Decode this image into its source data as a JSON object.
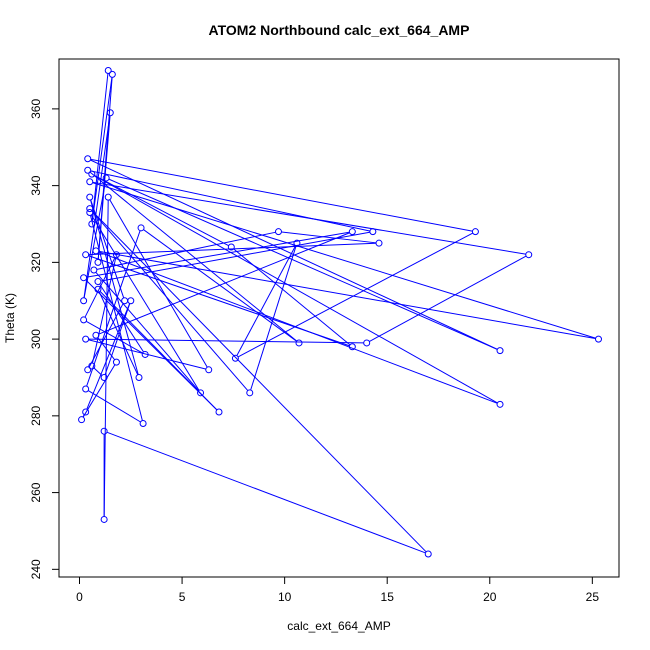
{
  "chart_data": {
    "type": "line",
    "title": "ATOM2 Northbound calc_ext_664_AMP",
    "xlabel": "calc_ext_664_AMP",
    "ylabel": "Theta (K)",
    "xlim": [
      -1.0,
      26.3
    ],
    "ylim": [
      238.0,
      373.0
    ],
    "x_ticks": [
      0,
      5,
      10,
      15,
      20,
      25
    ],
    "y_ticks": [
      240,
      260,
      280,
      300,
      320,
      340,
      360
    ],
    "grid": false,
    "legend": "none",
    "marker": "open-circle",
    "color": "#0000ff",
    "series": [
      {
        "points": [
          [
            1.4,
            370.0
          ],
          [
            0.6,
            330.0
          ],
          [
            1.6,
            369.0
          ],
          [
            0.9,
            320.0
          ],
          [
            1.5,
            359.0
          ],
          [
            0.2,
            310.0
          ],
          [
            1.3,
            342.0
          ],
          [
            20.5,
            297.0
          ],
          [
            0.4,
            347.0
          ],
          [
            19.3,
            328.0
          ],
          [
            7.6,
            295.0
          ],
          [
            10.6,
            325.0
          ],
          [
            8.3,
            286.0
          ],
          [
            0.5,
            334.0
          ],
          [
            17.0,
            244.0
          ],
          [
            1.2,
            276.0
          ],
          [
            1.2,
            253.0
          ],
          [
            1.4,
            337.0
          ],
          [
            6.3,
            292.0
          ],
          [
            0.3,
            300.0
          ],
          [
            14.0,
            299.0
          ],
          [
            21.9,
            322.0
          ],
          [
            0.5,
            341.0
          ],
          [
            25.3,
            300.0
          ],
          [
            0.8,
            323.0
          ],
          [
            20.5,
            283.0
          ],
          [
            0.6,
            343.0
          ],
          [
            7.4,
            324.0
          ],
          [
            13.3,
            298.0
          ],
          [
            0.3,
            322.0
          ],
          [
            14.6,
            325.0
          ],
          [
            9.7,
            328.0
          ],
          [
            0.7,
            318.0
          ],
          [
            5.9,
            286.0
          ],
          [
            0.5,
            333.0
          ],
          [
            3.1,
            278.0
          ],
          [
            0.3,
            287.0
          ],
          [
            3.0,
            329.0
          ],
          [
            10.7,
            299.0
          ],
          [
            0.4,
            344.0
          ],
          [
            14.3,
            328.0
          ],
          [
            0.9,
            315.0
          ],
          [
            3.2,
            296.0
          ],
          [
            0.2,
            305.0
          ],
          [
            1.8,
            322.0
          ],
          [
            0.6,
            293.0
          ],
          [
            1.2,
            290.0
          ],
          [
            2.5,
            310.0
          ],
          [
            0.3,
            281.0
          ],
          [
            0.1,
            279.0
          ],
          [
            1.8,
            294.0
          ],
          [
            0.8,
            301.0
          ],
          [
            13.3,
            328.0
          ],
          [
            0.2,
            316.0
          ],
          [
            6.8,
            281.0
          ],
          [
            0.9,
            313.0
          ],
          [
            2.9,
            290.0
          ],
          [
            0.5,
            337.0
          ],
          [
            2.2,
            310.0
          ],
          [
            0.4,
            292.0
          ]
        ]
      }
    ]
  }
}
